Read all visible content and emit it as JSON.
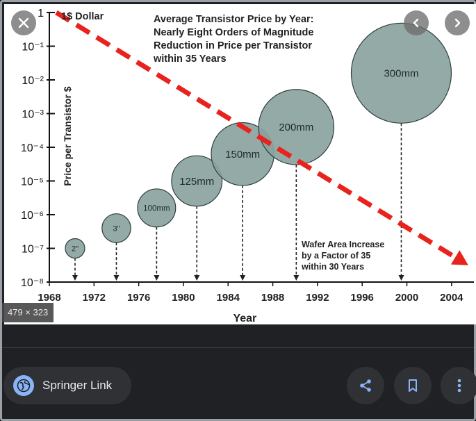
{
  "image_size_badge": "479 × 323",
  "source": {
    "name": "Springer Link"
  },
  "icons": {
    "close": "close-icon",
    "prev": "chevron-left-icon",
    "next": "chevron-right-icon",
    "share": "share-icon",
    "bookmark": "bookmark-icon",
    "more": "more-vert-icon",
    "globe": "globe-icon"
  },
  "colors": {
    "trend": "#e8231e",
    "wafer": "#8aa39e",
    "chrome": "#202124",
    "button": "#303134",
    "accent": "#8ab4f8"
  },
  "chart_data": {
    "type": "scatter",
    "title_lines": [
      "Average Transistor Price by Year:",
      "Nearly Eight Orders of Magnitude",
      "Reduction in Price per Transistor",
      "within 35 Years"
    ],
    "xlabel": "Year",
    "ylabel": "Price per Transistor $",
    "log_y": true,
    "xlim": [
      1968,
      2006
    ],
    "ylim_exponent": [
      -8,
      0
    ],
    "x_ticks": [
      1968,
      1972,
      1976,
      1980,
      1984,
      1988,
      1992,
      1996,
      2000,
      2004
    ],
    "y_ticks": [
      {
        "exp": 0,
        "label": "1"
      },
      {
        "exp": -1,
        "label": "10⁻¹"
      },
      {
        "exp": -2,
        "label": "10⁻²"
      },
      {
        "exp": -3,
        "label": "10⁻³"
      },
      {
        "exp": -4,
        "label": "10⁻⁴"
      },
      {
        "exp": -5,
        "label": "10⁻⁵"
      },
      {
        "exp": -6,
        "label": "10⁻⁶"
      },
      {
        "exp": -7,
        "label": "10⁻⁷"
      },
      {
        "exp": -8,
        "label": "10⁻⁸"
      }
    ],
    "trend": {
      "start": {
        "year": 1968,
        "exp": 0
      },
      "end": {
        "year": 2005.5,
        "exp": -7.5
      },
      "label": "1$ Dollar"
    },
    "wafers": [
      {
        "label": "2\"",
        "year": 1970.3,
        "exp": -7.0
      },
      {
        "label": "3\"",
        "year": 1974.0,
        "exp": -6.4
      },
      {
        "label": "100mm",
        "year": 1977.6,
        "exp": -5.8
      },
      {
        "label": "125mm",
        "year": 1981.2,
        "exp": -5.0
      },
      {
        "label": "150mm",
        "year": 1985.3,
        "exp": -4.2
      },
      {
        "label": "200mm",
        "year": 1990.1,
        "exp": -3.4
      },
      {
        "label": "300mm",
        "year": 1999.5,
        "exp": -1.8
      }
    ],
    "annotation_lines": [
      "Wafer Area Increase",
      "by a Factor of 35",
      "within 30 Years"
    ]
  }
}
